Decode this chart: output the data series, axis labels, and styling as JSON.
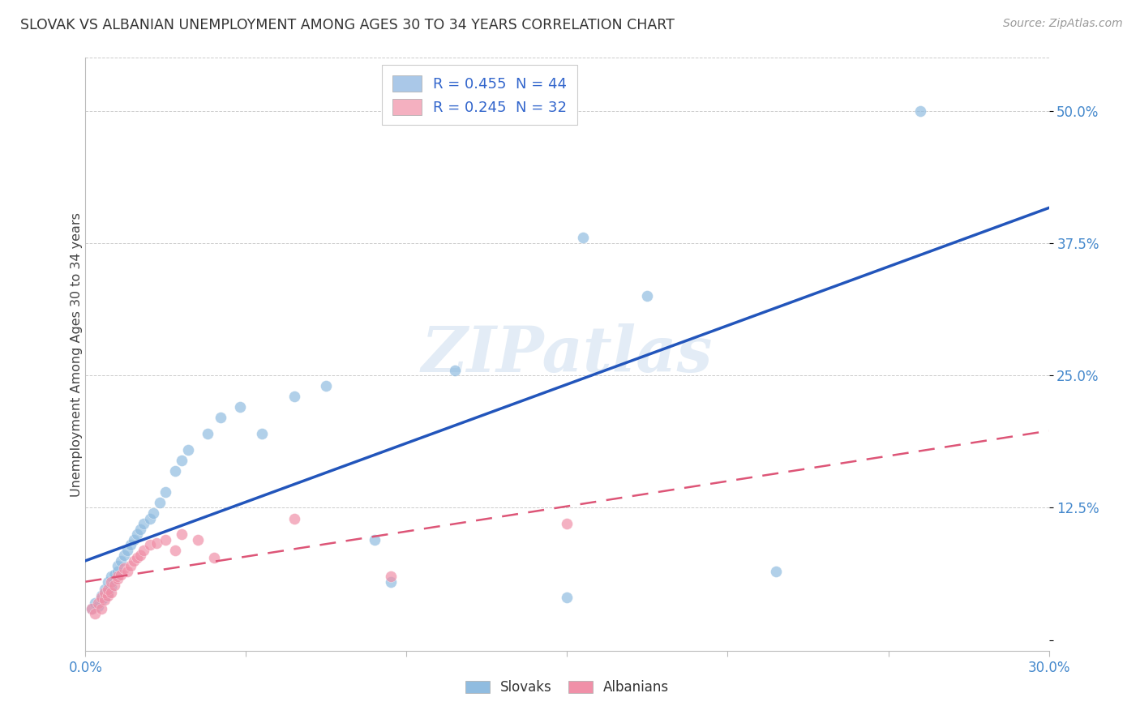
{
  "title": "SLOVAK VS ALBANIAN UNEMPLOYMENT AMONG AGES 30 TO 34 YEARS CORRELATION CHART",
  "source": "Source: ZipAtlas.com",
  "ylabel": "Unemployment Among Ages 30 to 34 years",
  "xlim": [
    0.0,
    0.3
  ],
  "ylim": [
    -0.01,
    0.55
  ],
  "yticks": [
    0.0,
    0.125,
    0.25,
    0.375,
    0.5
  ],
  "ytick_labels": [
    "",
    "12.5%",
    "25.0%",
    "37.5%",
    "50.0%"
  ],
  "xticks": [
    0.0,
    0.05,
    0.1,
    0.15,
    0.2,
    0.25,
    0.3
  ],
  "xtick_labels": [
    "0.0%",
    "",
    "",
    "",
    "",
    "",
    "30.0%"
  ],
  "legend_entries": [
    {
      "label": "R = 0.455  N = 44",
      "color": "#aac8e8"
    },
    {
      "label": "R = 0.245  N = 32",
      "color": "#f4b0c0"
    }
  ],
  "slovaks_color": "#90bce0",
  "albanians_color": "#f090a8",
  "trend_slovak_color": "#2255bb",
  "trend_albanian_color": "#dd5577",
  "watermark_text": "ZIPatlas",
  "slovaks_x": [
    0.002,
    0.003,
    0.004,
    0.005,
    0.005,
    0.006,
    0.006,
    0.007,
    0.007,
    0.008,
    0.008,
    0.009,
    0.009,
    0.01,
    0.01,
    0.011,
    0.012,
    0.013,
    0.014,
    0.015,
    0.016,
    0.017,
    0.018,
    0.02,
    0.021,
    0.023,
    0.025,
    0.028,
    0.03,
    0.032,
    0.038,
    0.042,
    0.048,
    0.055,
    0.065,
    0.075,
    0.09,
    0.095,
    0.115,
    0.15,
    0.155,
    0.175,
    0.215,
    0.26
  ],
  "slovaks_y": [
    0.03,
    0.035,
    0.032,
    0.038,
    0.042,
    0.04,
    0.048,
    0.045,
    0.055,
    0.05,
    0.06,
    0.058,
    0.062,
    0.065,
    0.07,
    0.075,
    0.08,
    0.085,
    0.09,
    0.095,
    0.1,
    0.105,
    0.11,
    0.115,
    0.12,
    0.13,
    0.14,
    0.16,
    0.17,
    0.18,
    0.195,
    0.21,
    0.22,
    0.195,
    0.23,
    0.24,
    0.095,
    0.055,
    0.255,
    0.04,
    0.38,
    0.325,
    0.065,
    0.5
  ],
  "albanians_x": [
    0.002,
    0.003,
    0.004,
    0.005,
    0.005,
    0.006,
    0.006,
    0.007,
    0.007,
    0.008,
    0.008,
    0.009,
    0.01,
    0.01,
    0.011,
    0.012,
    0.013,
    0.014,
    0.015,
    0.016,
    0.017,
    0.018,
    0.02,
    0.022,
    0.025,
    0.028,
    0.03,
    0.035,
    0.04,
    0.065,
    0.095,
    0.15
  ],
  "albanians_y": [
    0.03,
    0.025,
    0.035,
    0.03,
    0.04,
    0.038,
    0.045,
    0.042,
    0.048,
    0.045,
    0.055,
    0.052,
    0.058,
    0.06,
    0.062,
    0.068,
    0.065,
    0.07,
    0.075,
    0.078,
    0.08,
    0.085,
    0.09,
    0.092,
    0.095,
    0.085,
    0.1,
    0.095,
    0.078,
    0.115,
    0.06,
    0.11
  ]
}
